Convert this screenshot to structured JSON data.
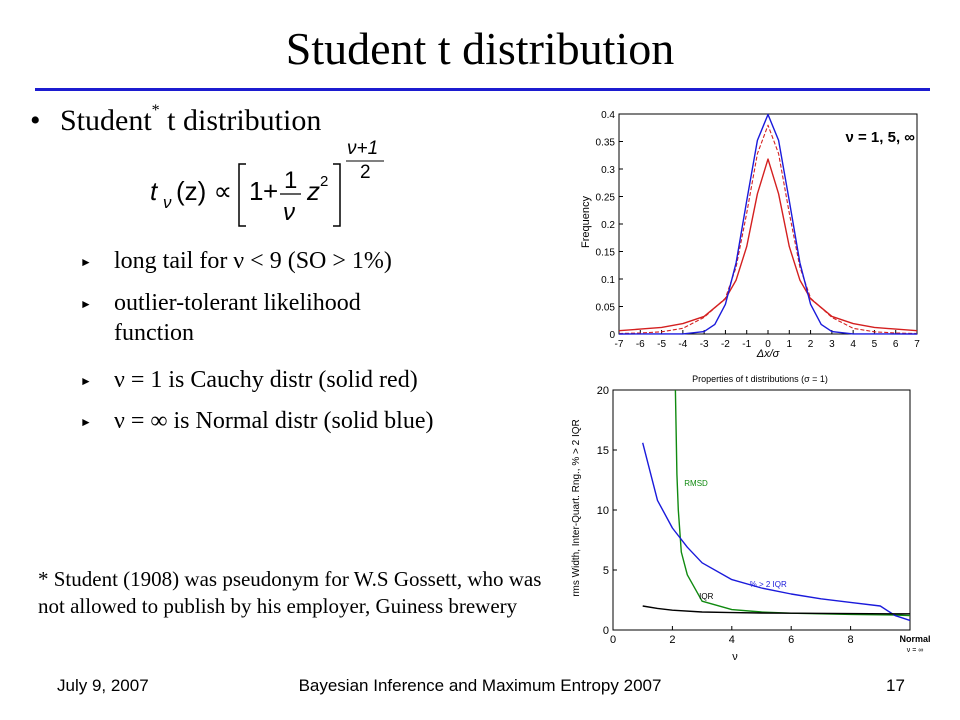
{
  "slide": {
    "title": "Student t distribution",
    "bullet_main": "Student",
    "bullet_sup": "*",
    "bullet_main_rest": " t distribution",
    "formula": {
      "lhs": "t",
      "lhs_sub": "ν",
      "arg": "(z) ∝",
      "one": "1",
      "plus": "+",
      "frac_num": "1",
      "frac_den": "ν",
      "z2": "z",
      "exp_sq": "2",
      "exp_num": "ν+1",
      "exp_den": "2"
    },
    "sub_bullets": [
      "long tail for ν < 9  (SO > 1%)",
      "outlier-tolerant likelihood function",
      "ν = 1 is Cauchy distr (solid red)",
      "ν = ∞ is Normal distr (solid blue)"
    ],
    "footnote": "* Student (1908) was pseudonym for W.S Gossett, who was not allowed to publish by his employer, Guiness brewery",
    "footer_left": "July 9, 2007",
    "footer_center": "Bayesian Inference and Maximum Entropy 2007",
    "footer_right": "17"
  },
  "colors": {
    "accent_rule": "#1c1cd0",
    "normal": "#1a1adb",
    "cauchy": "#d42020",
    "rmsd": "#108a10",
    "iqr": "#000000"
  },
  "chart_data": [
    {
      "type": "line",
      "title": "",
      "xlabel": "Δx/σ",
      "ylabel": "Frequency",
      "xlim": [
        -7,
        7
      ],
      "ylim": [
        0,
        0.4
      ],
      "xticks": [
        -7,
        -6,
        -5,
        -4,
        -3,
        -2,
        -1,
        0,
        1,
        2,
        3,
        4,
        5,
        6,
        7
      ],
      "yticks": [
        0,
        0.05,
        0.1,
        0.15,
        0.2,
        0.25,
        0.3,
        0.35,
        0.4
      ],
      "annotation": "ν = 1, 5, ∞",
      "series": [
        {
          "style": "solid-red",
          "color": "#d42020",
          "x": [
            -7,
            -6,
            -5,
            -4,
            -3,
            -2,
            -1.5,
            -1,
            -0.5,
            0,
            0.5,
            1,
            1.5,
            2,
            3,
            4,
            5,
            6,
            7
          ],
          "y": [
            0.006,
            0.009,
            0.012,
            0.019,
            0.032,
            0.064,
            0.098,
            0.159,
            0.255,
            0.318,
            0.255,
            0.159,
            0.098,
            0.064,
            0.032,
            0.019,
            0.012,
            0.009,
            0.006
          ]
        },
        {
          "style": "dashed-red",
          "color": "#d42020",
          "x": [
            -7,
            -6,
            -5,
            -4,
            -3,
            -2,
            -1.5,
            -1,
            -0.5,
            0,
            0.5,
            1,
            1.5,
            2,
            3,
            4,
            5,
            6,
            7
          ],
          "y": [
            0.0009,
            0.0018,
            0.004,
            0.0103,
            0.0302,
            0.0651,
            0.1216,
            0.2197,
            0.3279,
            0.3796,
            0.3279,
            0.2197,
            0.1216,
            0.0651,
            0.0302,
            0.0103,
            0.004,
            0.0018,
            0.0009
          ]
        },
        {
          "style": "solid-blue",
          "color": "#1a1adb",
          "x": [
            -7,
            -4,
            -3,
            -2.5,
            -2,
            -1.5,
            -1,
            -0.5,
            0,
            0.5,
            1,
            1.5,
            2,
            2.5,
            3,
            4,
            7
          ],
          "y": [
            0,
            0.0001,
            0.0044,
            0.0175,
            0.054,
            0.1295,
            0.242,
            0.352,
            0.399,
            0.352,
            0.242,
            0.1295,
            0.054,
            0.0175,
            0.0044,
            0.0001,
            0
          ]
        }
      ]
    },
    {
      "type": "line",
      "title": "Properties of t distributions (σ = 1)",
      "xlabel": "ν",
      "ylabel": "rms Width, Inter-Quart. Rng., % > 2 IQR",
      "xlim": [
        0,
        10
      ],
      "ylim": [
        0,
        20
      ],
      "xticks": [
        0,
        2,
        4,
        6,
        8
      ],
      "yticks": [
        0,
        5,
        10,
        15,
        20
      ],
      "x_extra_label": "Normal",
      "x_extra_label2": "ν = ∞",
      "series": [
        {
          "name": "RMSD",
          "color": "#108a10",
          "x": [
            2.1,
            2.15,
            2.2,
            2.3,
            2.5,
            3,
            4,
            5,
            6,
            8,
            9.5,
            10
          ],
          "y": [
            20,
            13,
            10,
            6.5,
            4.6,
            2.4,
            1.7,
            1.5,
            1.4,
            1.3,
            1.25,
            1.2
          ]
        },
        {
          "name": "% > 2 IQR",
          "color": "#1a1adb",
          "x": [
            1,
            1.5,
            2,
            2.5,
            3,
            4,
            5,
            6,
            7,
            8,
            9,
            9.5,
            10
          ],
          "y": [
            15.6,
            10.8,
            8.5,
            6.9,
            5.6,
            4.2,
            3.5,
            3.0,
            2.6,
            2.3,
            2.0,
            1.2,
            0.8
          ]
        },
        {
          "name": "IQR",
          "color": "#000000",
          "x": [
            1,
            1.5,
            2,
            3,
            4,
            5,
            6,
            8,
            9.5,
            10
          ],
          "y": [
            2.0,
            1.8,
            1.65,
            1.5,
            1.45,
            1.42,
            1.4,
            1.37,
            1.35,
            1.35
          ]
        }
      ]
    }
  ]
}
